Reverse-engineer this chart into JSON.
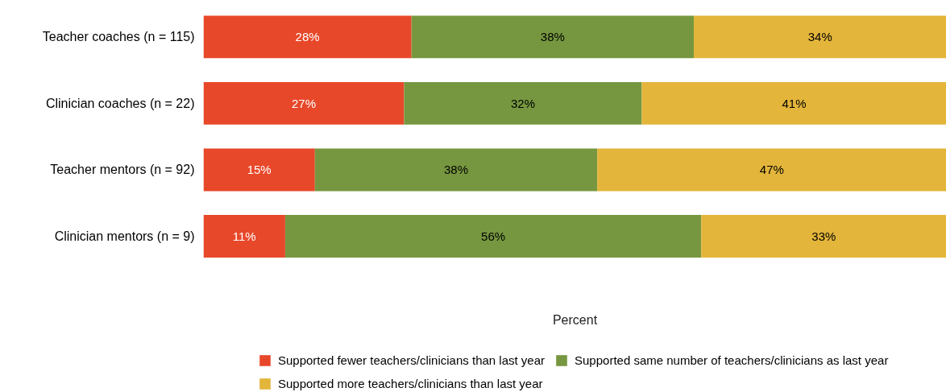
{
  "chart_data": {
    "type": "bar",
    "orientation": "horizontal",
    "stacked": true,
    "xlabel": "Percent",
    "categories": [
      "Teacher coaches (n = 115)",
      "Clinician coaches (n = 22)",
      "Teacher mentors (n = 92)",
      "Clinician mentors (n = 9)"
    ],
    "series": [
      {
        "name": "Supported fewer teachers/clinicians than last year",
        "color": "#e8482a",
        "values": [
          28,
          27,
          15,
          11
        ],
        "value_labels": [
          "28%",
          "27%",
          "15%",
          "11%"
        ]
      },
      {
        "name": "Supported same number of teachers/clinicians as last year",
        "color": "#76973f",
        "values": [
          38,
          32,
          38,
          56
        ],
        "value_labels": [
          "38%",
          "32%",
          "38%",
          "56%"
        ]
      },
      {
        "name": "Supported more teachers/clinicians than last year",
        "color": "#e3b53a",
        "values": [
          34,
          41,
          47,
          33
        ],
        "value_labels": [
          "34%",
          "41%",
          "47%",
          "33%"
        ]
      }
    ],
    "xlim": [
      0,
      100
    ],
    "legend": "bottom",
    "grid": false,
    "tick_labels": "y"
  }
}
